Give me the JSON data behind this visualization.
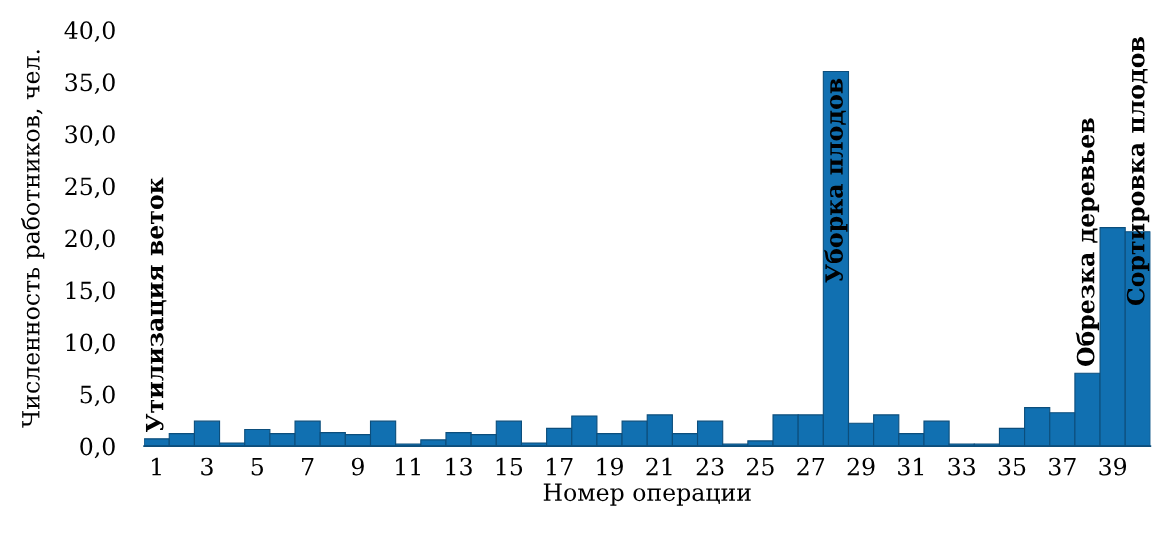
{
  "chart_data": {
    "type": "bar",
    "xlabel": "Номер операции",
    "ylabel": "Численность работников, чел.",
    "x": [
      1,
      2,
      3,
      4,
      5,
      6,
      7,
      8,
      9,
      10,
      11,
      12,
      13,
      14,
      15,
      16,
      17,
      18,
      19,
      20,
      21,
      22,
      23,
      24,
      25,
      26,
      27,
      28,
      29,
      30,
      31,
      32,
      33,
      34,
      35,
      36,
      37,
      38,
      39,
      40
    ],
    "values": [
      0.7,
      1.2,
      2.4,
      0.3,
      1.6,
      1.2,
      2.4,
      1.3,
      1.1,
      2.4,
      0.2,
      0.6,
      1.3,
      1.1,
      2.4,
      0.3,
      1.7,
      2.9,
      1.2,
      2.4,
      3.0,
      1.2,
      2.4,
      0.2,
      0.5,
      3.0,
      3.0,
      36.0,
      2.2,
      3.0,
      1.2,
      2.4,
      0.2,
      0.2,
      1.7,
      3.7,
      3.2,
      7.0,
      21.0,
      20.6
    ],
    "color": "#1170b1",
    "xlim": [
      0.5,
      40.5
    ],
    "xticks": [
      1,
      3,
      5,
      7,
      9,
      11,
      13,
      15,
      17,
      19,
      21,
      23,
      25,
      27,
      29,
      31,
      33,
      35,
      37,
      39
    ],
    "ylim": [
      0,
      40
    ],
    "yticks": [
      {
        "value": 0,
        "label": "0,0"
      },
      {
        "value": 5,
        "label": "5,0"
      },
      {
        "value": 10,
        "label": "10,0"
      },
      {
        "value": 15,
        "label": "15,0"
      },
      {
        "value": 20,
        "label": "20,0"
      },
      {
        "value": 25,
        "label": "25,0"
      },
      {
        "value": 30,
        "label": "30,0"
      },
      {
        "value": 35,
        "label": "35,0"
      },
      {
        "value": 40,
        "label": "40,0"
      }
    ],
    "annotations": [
      {
        "text": "Утилизация веток",
        "x": 1,
        "y": 0.7
      },
      {
        "text": "Уборка плодов",
        "x": 28,
        "y": 36.0
      },
      {
        "text": "Обрезка деревьев",
        "x": 38,
        "y": 7.0
      },
      {
        "text": "Сортировка плодов",
        "x": 40,
        "y": 20.6
      }
    ]
  }
}
